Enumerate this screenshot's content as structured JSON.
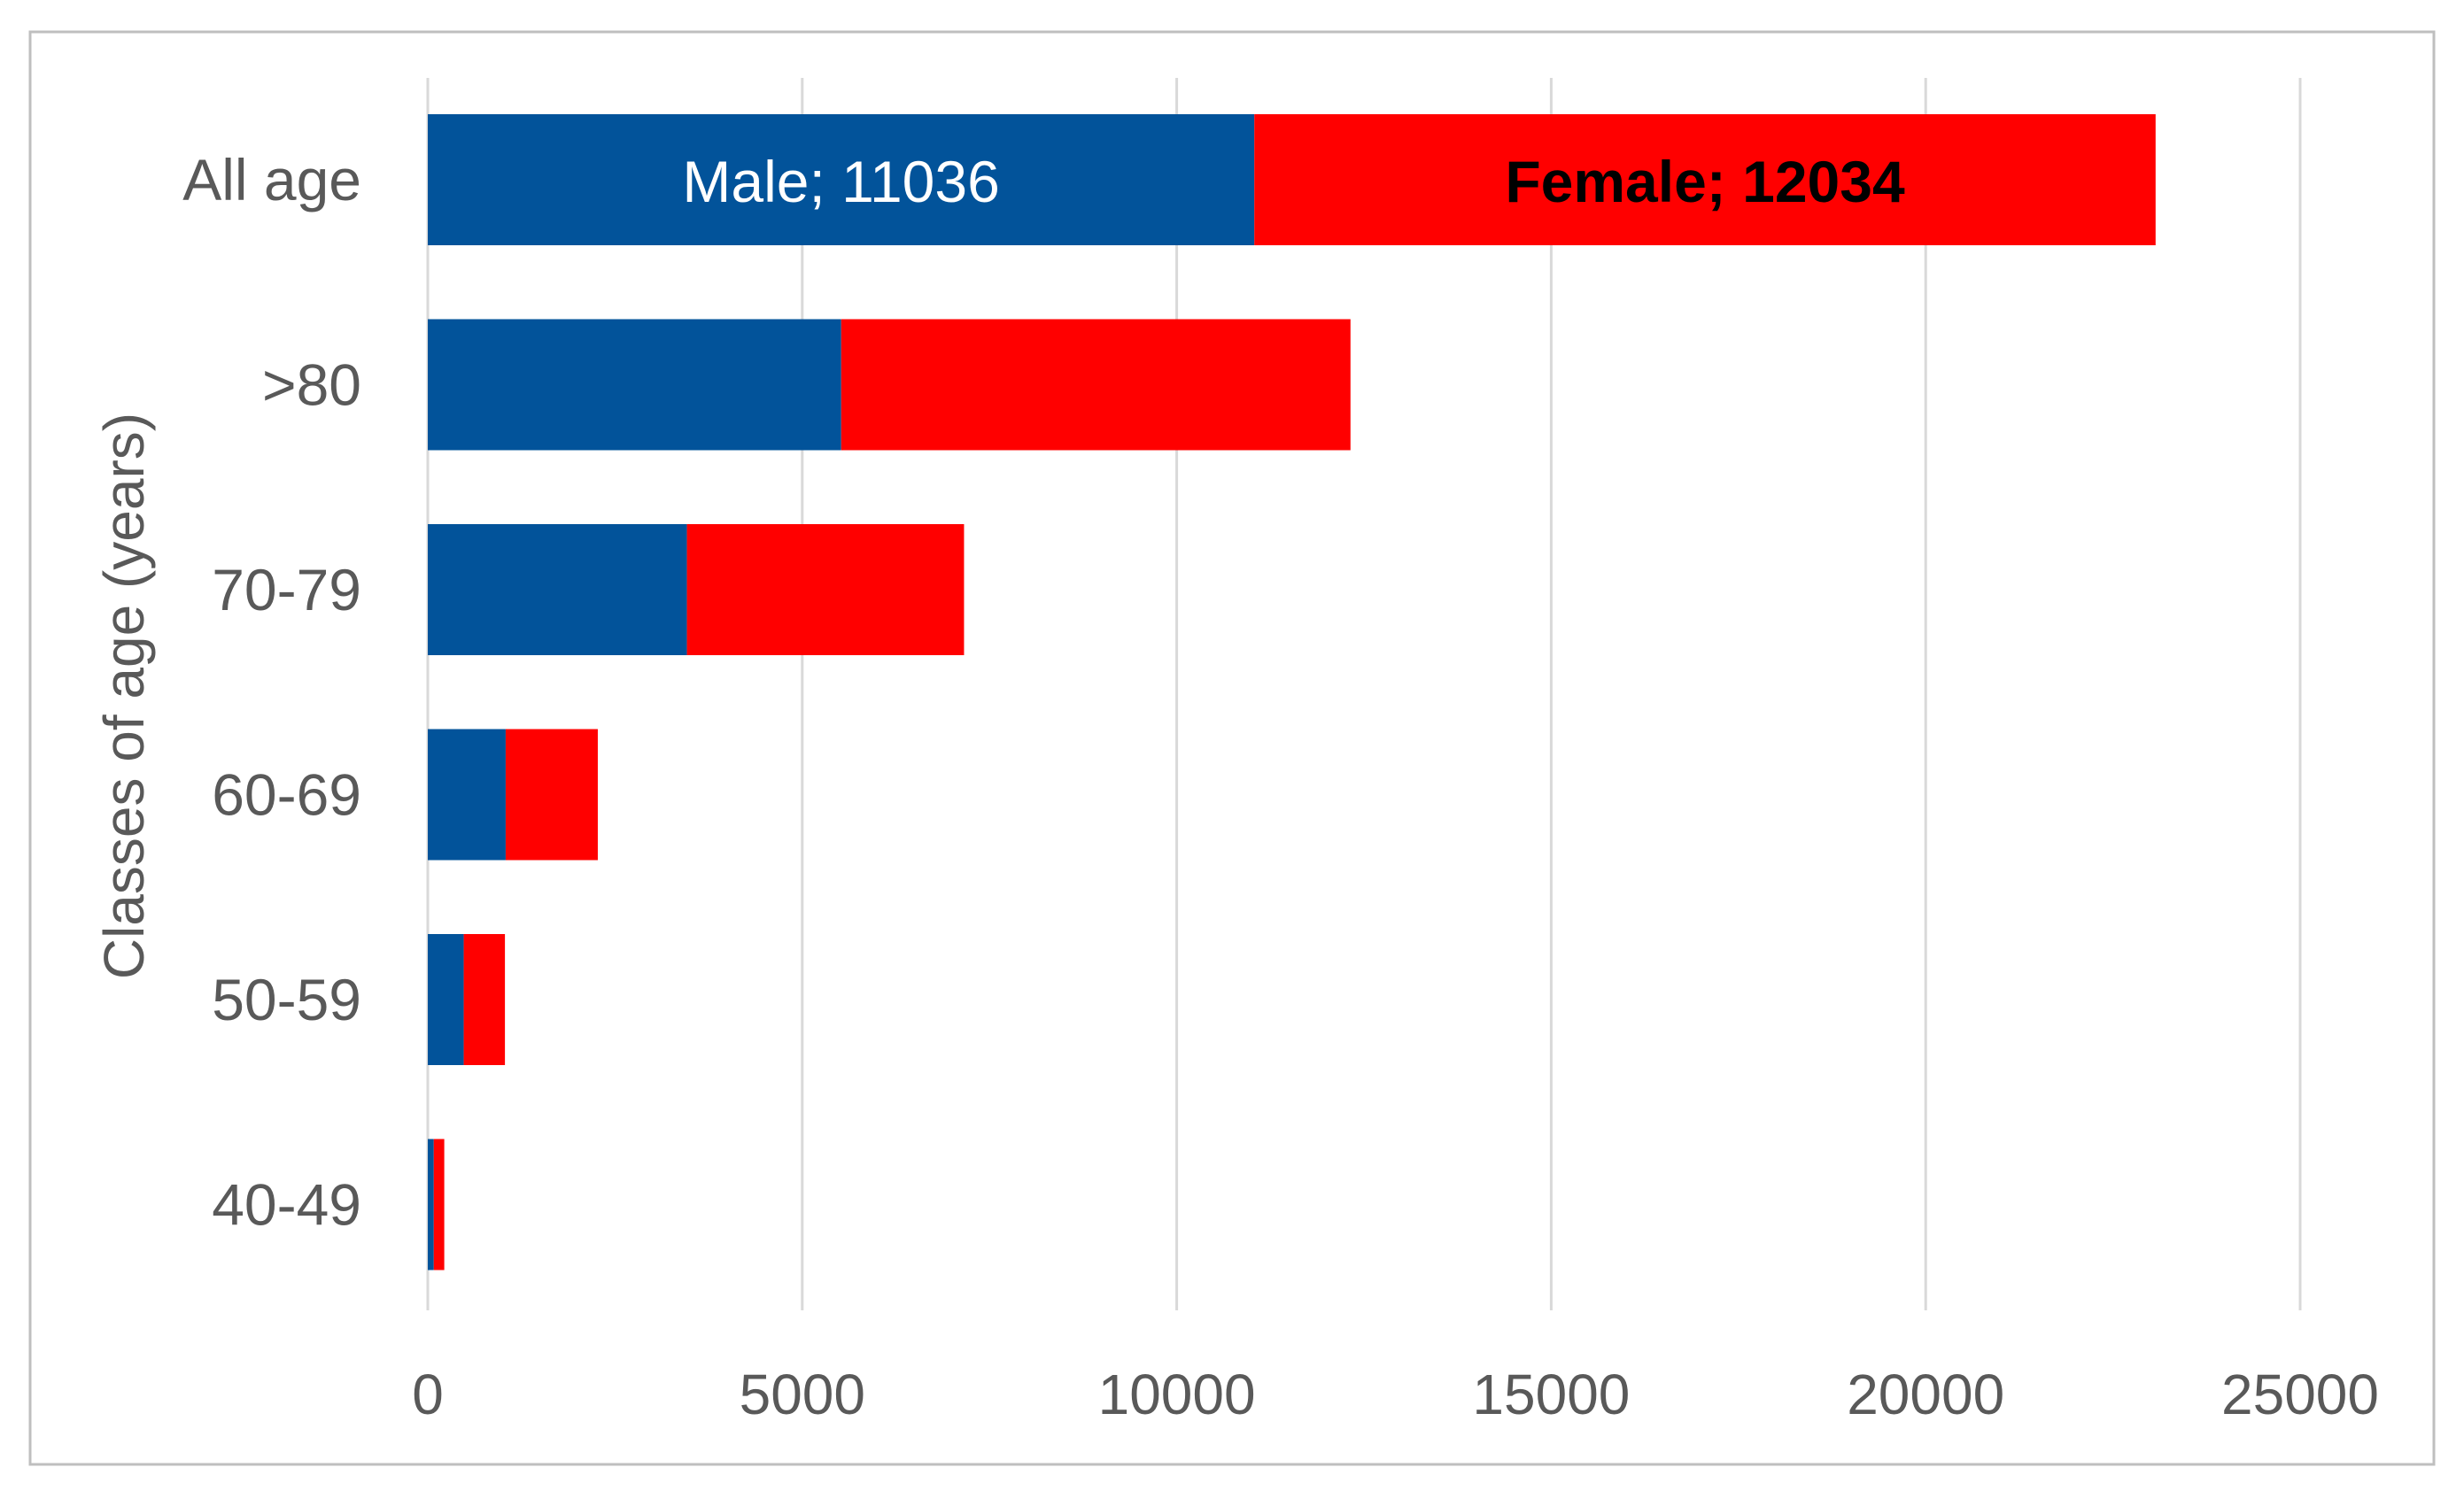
{
  "chart_data": {
    "type": "bar",
    "orientation": "horizontal",
    "stacked": true,
    "title": "",
    "xlabel": "",
    "ylabel": "Classes of age (years)",
    "categories": [
      "All age",
      ">80",
      "70-79",
      "60-69",
      "50-59",
      "40-49"
    ],
    "series": [
      {
        "name": "Male",
        "color": "#02539a",
        "values": [
          11036,
          5520,
          3460,
          1040,
          480,
          80
        ],
        "data_label": {
          "category_index": 0,
          "text": "Male; 11036",
          "text_color": "#ffffff"
        }
      },
      {
        "name": "Female",
        "color": "#ff0000",
        "values": [
          12034,
          6800,
          3700,
          1230,
          550,
          140
        ],
        "data_label": {
          "category_index": 0,
          "text": "Female; 12034",
          "text_color": "#000000"
        }
      }
    ],
    "xlim": [
      0,
      25000
    ],
    "xticks": [
      0,
      5000,
      10000,
      15000,
      20000,
      25000
    ],
    "grid": true,
    "legend": "none",
    "colors": {
      "gridline": "#d9d9d9",
      "frame": "#bfbfbf",
      "axis_text": "#595959"
    }
  }
}
